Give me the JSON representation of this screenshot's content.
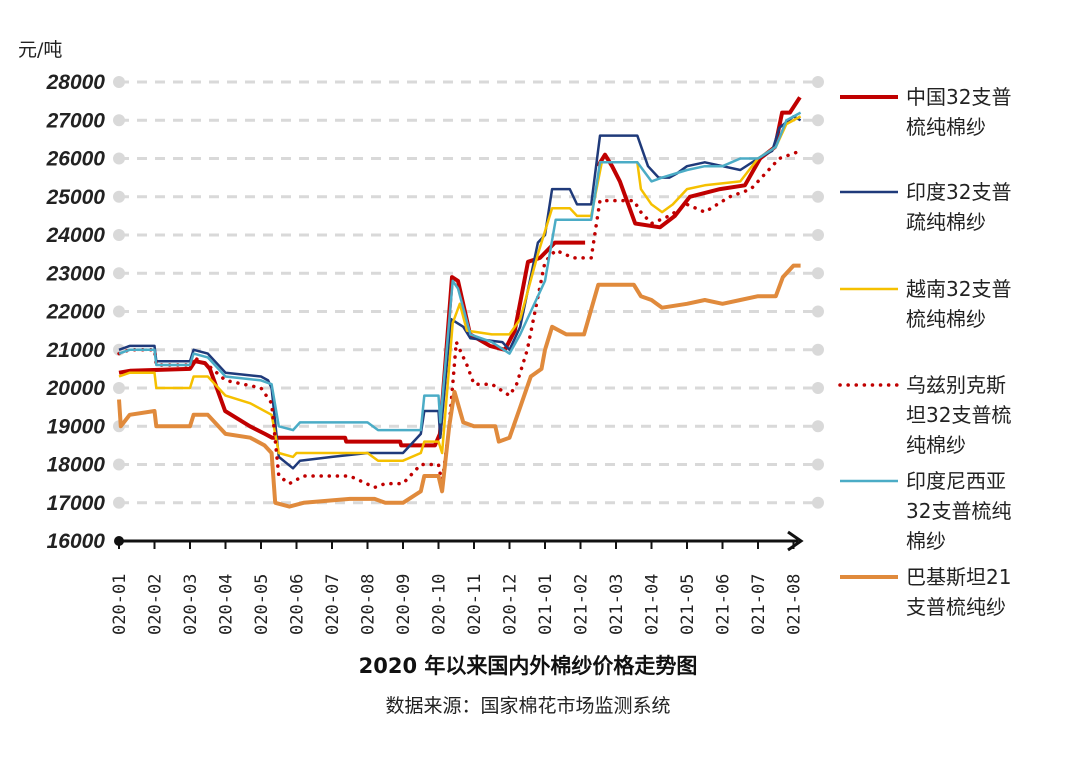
{
  "chart_data": {
    "type": "line",
    "title": "2020 年以来国内外棉纱价格走势图",
    "subtitle": "数据来源：国家棉花市场监测系统",
    "ylabel": "元/吨",
    "xlabel": "",
    "ylim": [
      16000,
      28000
    ],
    "yticks": [
      16000,
      17000,
      18000,
      19000,
      20000,
      21000,
      22000,
      23000,
      24000,
      25000,
      26000,
      27000,
      28000
    ],
    "xtick_labels": [
      "020-01",
      "020-02",
      "020-03",
      "020-04",
      "020-05",
      "020-06",
      "020-07",
      "020-08",
      "020-09",
      "020-10",
      "020-11",
      "020-12",
      "021-01",
      "021-02",
      "021-03",
      "021-04",
      "021-05",
      "021-06",
      "021-07",
      "021-08"
    ],
    "x_unit": "months since 2020-01",
    "grid": true,
    "legend_position": "right",
    "series": [
      {
        "name": "中国32支普梳纯棉纱",
        "legend_lines": [
          "中国32支普",
          "梳纯棉纱"
        ],
        "color": "#c00000",
        "style": "solid-thick",
        "points": [
          [
            0,
            20400
          ],
          [
            0.31,
            20450
          ],
          [
            2.0,
            20500
          ],
          [
            2.14,
            20700
          ],
          [
            2.42,
            20650
          ],
          [
            2.56,
            20500
          ],
          [
            2.99,
            19400
          ],
          [
            3.69,
            19000
          ],
          [
            4.11,
            18800
          ],
          [
            4.31,
            18700
          ],
          [
            6.37,
            18700
          ],
          [
            6.4,
            18600
          ],
          [
            7.92,
            18600
          ],
          [
            7.95,
            18500
          ],
          [
            8.9,
            18500
          ],
          [
            9.04,
            18800
          ],
          [
            9.38,
            22900
          ],
          [
            9.55,
            22800
          ],
          [
            9.89,
            21400
          ],
          [
            10.45,
            21100
          ],
          [
            10.87,
            21000
          ],
          [
            11.15,
            21500
          ],
          [
            11.52,
            23300
          ],
          [
            11.86,
            23400
          ],
          [
            12.28,
            23800
          ],
          [
            13.13,
            23800
          ],
          null,
          [
            13.49,
            25800
          ],
          [
            13.69,
            26100
          ],
          [
            13.89,
            25800
          ],
          [
            14.11,
            25400
          ],
          [
            14.54,
            24300
          ],
          [
            15.24,
            24200
          ],
          [
            15.66,
            24500
          ],
          [
            16.08,
            25000
          ],
          [
            16.93,
            25200
          ],
          [
            17.63,
            25300
          ],
          [
            18.06,
            26000
          ],
          [
            18.48,
            26300
          ],
          [
            18.68,
            27200
          ],
          [
            18.9,
            27200
          ],
          [
            19.18,
            27600
          ]
        ]
      },
      {
        "name": "印度32支普疏纯棉纱",
        "legend_lines": [
          "印度32支普",
          "疏纯棉纱"
        ],
        "color": "#1f3a7a",
        "style": "solid",
        "points": [
          [
            0,
            21000
          ],
          [
            0.3,
            21100
          ],
          [
            1.0,
            21100
          ],
          [
            1.05,
            20700
          ],
          [
            2.0,
            20700
          ],
          [
            2.1,
            21000
          ],
          [
            2.5,
            20900
          ],
          [
            3.0,
            20400
          ],
          [
            4.0,
            20300
          ],
          [
            4.2,
            20200
          ],
          [
            4.3,
            20000
          ],
          [
            4.5,
            18200
          ],
          [
            4.9,
            17900
          ],
          [
            5.1,
            18100
          ],
          [
            6.0,
            18200
          ],
          [
            7.0,
            18300
          ],
          [
            8.0,
            18300
          ],
          [
            8.5,
            18800
          ],
          [
            8.6,
            19400
          ],
          [
            9.0,
            19400
          ],
          [
            9.05,
            18700
          ],
          [
            9.35,
            21800
          ],
          [
            9.7,
            21600
          ],
          [
            9.9,
            21300
          ],
          [
            10.8,
            21200
          ],
          [
            11.0,
            21000
          ],
          [
            11.3,
            21600
          ],
          [
            11.8,
            23800
          ],
          [
            12.0,
            24000
          ],
          [
            12.2,
            25200
          ],
          [
            12.7,
            25200
          ],
          [
            12.9,
            24800
          ],
          [
            13.3,
            24800
          ],
          [
            13.55,
            26600
          ],
          [
            14.6,
            26600
          ],
          [
            14.9,
            25800
          ],
          [
            15.2,
            25500
          ],
          [
            15.5,
            25500
          ],
          [
            15.7,
            25600
          ],
          [
            16.0,
            25800
          ],
          [
            16.5,
            25900
          ],
          [
            17.5,
            25700
          ],
          [
            18.0,
            26000
          ],
          [
            18.4,
            26200
          ],
          [
            18.6,
            26800
          ],
          [
            19.0,
            27100
          ],
          [
            19.2,
            27000
          ]
        ]
      },
      {
        "name": "越南32支普梳纯棉纱",
        "legend_lines": [
          "越南32支普",
          "梳纯棉纱"
        ],
        "color": "#f5c000",
        "style": "solid",
        "points": [
          [
            0,
            20300
          ],
          [
            0.3,
            20400
          ],
          [
            1.0,
            20400
          ],
          [
            1.05,
            20000
          ],
          [
            2.0,
            20000
          ],
          [
            2.1,
            20300
          ],
          [
            2.5,
            20300
          ],
          [
            3.0,
            19800
          ],
          [
            3.7,
            19600
          ],
          [
            4.3,
            19300
          ],
          [
            4.5,
            18300
          ],
          [
            4.9,
            18200
          ],
          [
            5.0,
            18300
          ],
          [
            7.0,
            18300
          ],
          [
            7.3,
            18100
          ],
          [
            8.0,
            18100
          ],
          [
            8.5,
            18300
          ],
          [
            8.6,
            18600
          ],
          [
            9.0,
            18600
          ],
          [
            9.1,
            18300
          ],
          [
            9.4,
            21700
          ],
          [
            9.6,
            22200
          ],
          [
            9.8,
            21500
          ],
          [
            10.5,
            21400
          ],
          [
            11.0,
            21400
          ],
          [
            11.3,
            21800
          ],
          [
            11.8,
            23500
          ],
          [
            12.2,
            24700
          ],
          [
            12.7,
            24700
          ],
          [
            12.9,
            24500
          ],
          [
            13.3,
            24500
          ],
          [
            13.6,
            25900
          ],
          [
            14.6,
            25900
          ],
          [
            14.7,
            25200
          ],
          [
            15.0,
            24800
          ],
          [
            15.3,
            24600
          ],
          [
            15.6,
            24800
          ],
          [
            16.0,
            25200
          ],
          [
            16.5,
            25300
          ],
          [
            17.5,
            25400
          ],
          [
            18.0,
            26000
          ],
          [
            18.5,
            26300
          ],
          [
            18.8,
            26900
          ],
          [
            19.2,
            27100
          ]
        ]
      },
      {
        "name": "乌兹别克斯坦32支普梳纯棉纱",
        "legend_lines": [
          "乌兹别克斯",
          "坦32支普梳",
          "纯棉纱"
        ],
        "color": "#c00000",
        "style": "dotted",
        "points": [
          [
            0,
            20900
          ],
          [
            0.3,
            21000
          ],
          [
            1.0,
            21000
          ],
          [
            1.05,
            20600
          ],
          [
            2.0,
            20600
          ],
          [
            2.1,
            20800
          ],
          [
            2.5,
            20600
          ],
          [
            3.0,
            20200
          ],
          [
            4.0,
            20000
          ],
          [
            4.3,
            19600
          ],
          [
            4.5,
            17700
          ],
          [
            4.8,
            17500
          ],
          [
            5.2,
            17700
          ],
          [
            6.5,
            17700
          ],
          [
            7.2,
            17400
          ],
          [
            7.5,
            17500
          ],
          [
            8.0,
            17500
          ],
          [
            8.5,
            18000
          ],
          [
            9.0,
            18000
          ],
          [
            9.1,
            17500
          ],
          [
            9.3,
            19000
          ],
          [
            9.5,
            21200
          ],
          [
            9.8,
            20600
          ],
          [
            10.0,
            20100
          ],
          [
            10.5,
            20100
          ],
          [
            11.0,
            19800
          ],
          [
            11.2,
            20100
          ],
          [
            11.5,
            21000
          ],
          [
            12.0,
            23300
          ],
          [
            12.3,
            23600
          ],
          [
            12.8,
            23400
          ],
          [
            13.3,
            23400
          ],
          [
            13.55,
            24900
          ],
          [
            14.5,
            24900
          ],
          [
            14.7,
            24600
          ],
          [
            15.0,
            24300
          ],
          [
            15.5,
            24500
          ],
          [
            16.0,
            24800
          ],
          [
            16.5,
            24600
          ],
          [
            17.2,
            25000
          ],
          [
            17.8,
            25200
          ],
          [
            18.6,
            26000
          ],
          [
            19.2,
            26200
          ]
        ]
      },
      {
        "name": "印度尼西亚32支普梳纯棉纱",
        "legend_lines": [
          "印度尼西亚",
          "32支普梳纯",
          "棉纱"
        ],
        "color": "#4bacc6",
        "style": "solid",
        "points": [
          [
            0,
            20900
          ],
          [
            0.3,
            21000
          ],
          [
            1.0,
            21000
          ],
          [
            1.05,
            20600
          ],
          [
            2.0,
            20600
          ],
          [
            2.1,
            20900
          ],
          [
            2.5,
            20800
          ],
          [
            3.0,
            20300
          ],
          [
            4.0,
            20200
          ],
          [
            4.3,
            20100
          ],
          [
            4.5,
            19000
          ],
          [
            4.9,
            18900
          ],
          [
            5.1,
            19100
          ],
          [
            7.0,
            19100
          ],
          [
            7.3,
            18900
          ],
          [
            8.5,
            18900
          ],
          [
            8.6,
            19800
          ],
          [
            9.0,
            19800
          ],
          [
            9.05,
            19100
          ],
          [
            9.4,
            22800
          ],
          [
            9.55,
            22600
          ],
          [
            9.9,
            21400
          ],
          [
            10.5,
            21200
          ],
          [
            11.0,
            20900
          ],
          [
            11.3,
            21400
          ],
          [
            12.0,
            22800
          ],
          [
            12.3,
            24400
          ],
          [
            13.3,
            24400
          ],
          [
            13.55,
            25900
          ],
          [
            14.6,
            25900
          ],
          [
            15.0,
            25400
          ],
          [
            15.3,
            25500
          ],
          [
            16.0,
            25700
          ],
          [
            16.5,
            25800
          ],
          [
            17.0,
            25800
          ],
          [
            17.5,
            26000
          ],
          [
            18.0,
            26000
          ],
          [
            18.5,
            26300
          ],
          [
            18.8,
            27000
          ],
          [
            19.2,
            27200
          ]
        ]
      },
      {
        "name": "巴基斯坦21支普梳纯纱",
        "legend_lines": [
          "巴基斯坦21",
          "支普梳纯纱"
        ],
        "color": "#e08a3c",
        "style": "solid-thick",
        "points": [
          [
            0,
            19700
          ],
          [
            0.05,
            19000
          ],
          [
            0.3,
            19300
          ],
          [
            1.0,
            19400
          ],
          [
            1.05,
            19000
          ],
          [
            2.0,
            19000
          ],
          [
            2.1,
            19300
          ],
          [
            2.5,
            19300
          ],
          [
            3.0,
            18800
          ],
          [
            3.7,
            18700
          ],
          [
            4.1,
            18500
          ],
          [
            4.3,
            18300
          ],
          [
            4.4,
            17000
          ],
          [
            4.8,
            16900
          ],
          [
            5.2,
            17000
          ],
          [
            6.5,
            17100
          ],
          [
            7.2,
            17100
          ],
          [
            7.5,
            17000
          ],
          [
            8.0,
            17000
          ],
          [
            8.5,
            17300
          ],
          [
            8.6,
            17700
          ],
          [
            9.0,
            17700
          ],
          [
            9.1,
            17300
          ],
          [
            9.3,
            19000
          ],
          [
            9.45,
            19900
          ],
          [
            9.7,
            19100
          ],
          [
            10.0,
            19000
          ],
          [
            10.6,
            19000
          ],
          [
            10.7,
            18600
          ],
          [
            11.0,
            18700
          ],
          [
            11.3,
            19500
          ],
          [
            11.6,
            20300
          ],
          [
            11.9,
            20500
          ],
          [
            12.0,
            21000
          ],
          [
            12.2,
            21600
          ],
          [
            12.6,
            21400
          ],
          [
            13.1,
            21400
          ],
          [
            13.5,
            22700
          ],
          [
            14.5,
            22700
          ],
          [
            14.7,
            22400
          ],
          [
            15.0,
            22300
          ],
          [
            15.3,
            22100
          ],
          [
            16.0,
            22200
          ],
          [
            16.5,
            22300
          ],
          [
            17.0,
            22200
          ],
          [
            17.5,
            22300
          ],
          [
            18.0,
            22400
          ],
          [
            18.5,
            22400
          ],
          [
            18.7,
            22900
          ],
          [
            19.0,
            23200
          ],
          [
            19.2,
            23200
          ]
        ]
      }
    ]
  }
}
